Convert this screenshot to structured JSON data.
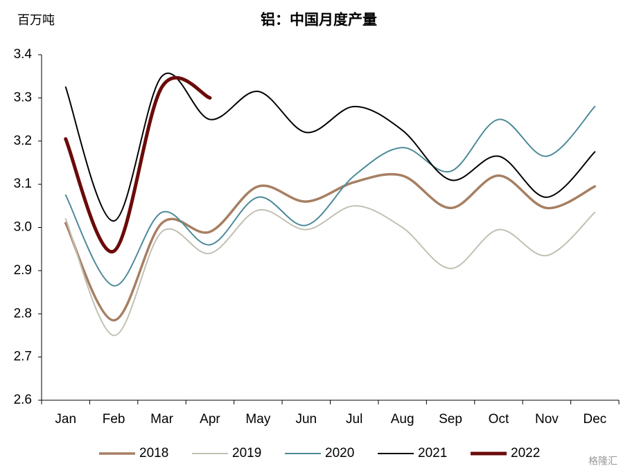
{
  "chart_data": {
    "type": "line",
    "title": "铝：中国月度产量",
    "y_label": "百万吨",
    "categories": [
      "Jan",
      "Feb",
      "Mar",
      "Apr",
      "May",
      "Jun",
      "Jul",
      "Aug",
      "Sep",
      "Oct",
      "Nov",
      "Dec"
    ],
    "series": [
      {
        "name": "2018",
        "color": "#a67f62",
        "width": 3.5,
        "values": [
          3.01,
          2.785,
          3.01,
          2.99,
          3.095,
          3.06,
          3.105,
          3.12,
          3.045,
          3.12,
          3.045,
          3.095
        ]
      },
      {
        "name": "2019",
        "color": "#c2c0b2",
        "width": 2,
        "values": [
          3.02,
          2.75,
          2.99,
          2.94,
          3.04,
          2.995,
          3.05,
          3.0,
          2.905,
          2.995,
          2.935,
          3.035
        ]
      },
      {
        "name": "2020",
        "color": "#4d8a99",
        "width": 2,
        "values": [
          3.075,
          2.865,
          3.035,
          2.96,
          3.07,
          3.005,
          3.12,
          3.185,
          3.13,
          3.25,
          3.165,
          3.28
        ]
      },
      {
        "name": "2021",
        "color": "#000000",
        "width": 2,
        "values": [
          3.325,
          3.015,
          3.35,
          3.25,
          3.315,
          3.22,
          3.28,
          3.225,
          3.11,
          3.165,
          3.07,
          3.175
        ]
      },
      {
        "name": "2022",
        "color": "#6b0a0a",
        "width": 5,
        "values": [
          3.205,
          2.945,
          3.325,
          3.3,
          null,
          null,
          null,
          null,
          null,
          null,
          null,
          null
        ]
      }
    ],
    "ylim": [
      2.6,
      3.4
    ],
    "yticks": [
      2.6,
      2.7,
      2.8,
      2.9,
      {
        "value": 3.0,
        "label": "3.0"
      },
      3.1,
      3.2,
      3.3,
      3.4
    ],
    "smooth": true,
    "grid": false,
    "legend": "bottom",
    "watermark": "格隆汇"
  }
}
